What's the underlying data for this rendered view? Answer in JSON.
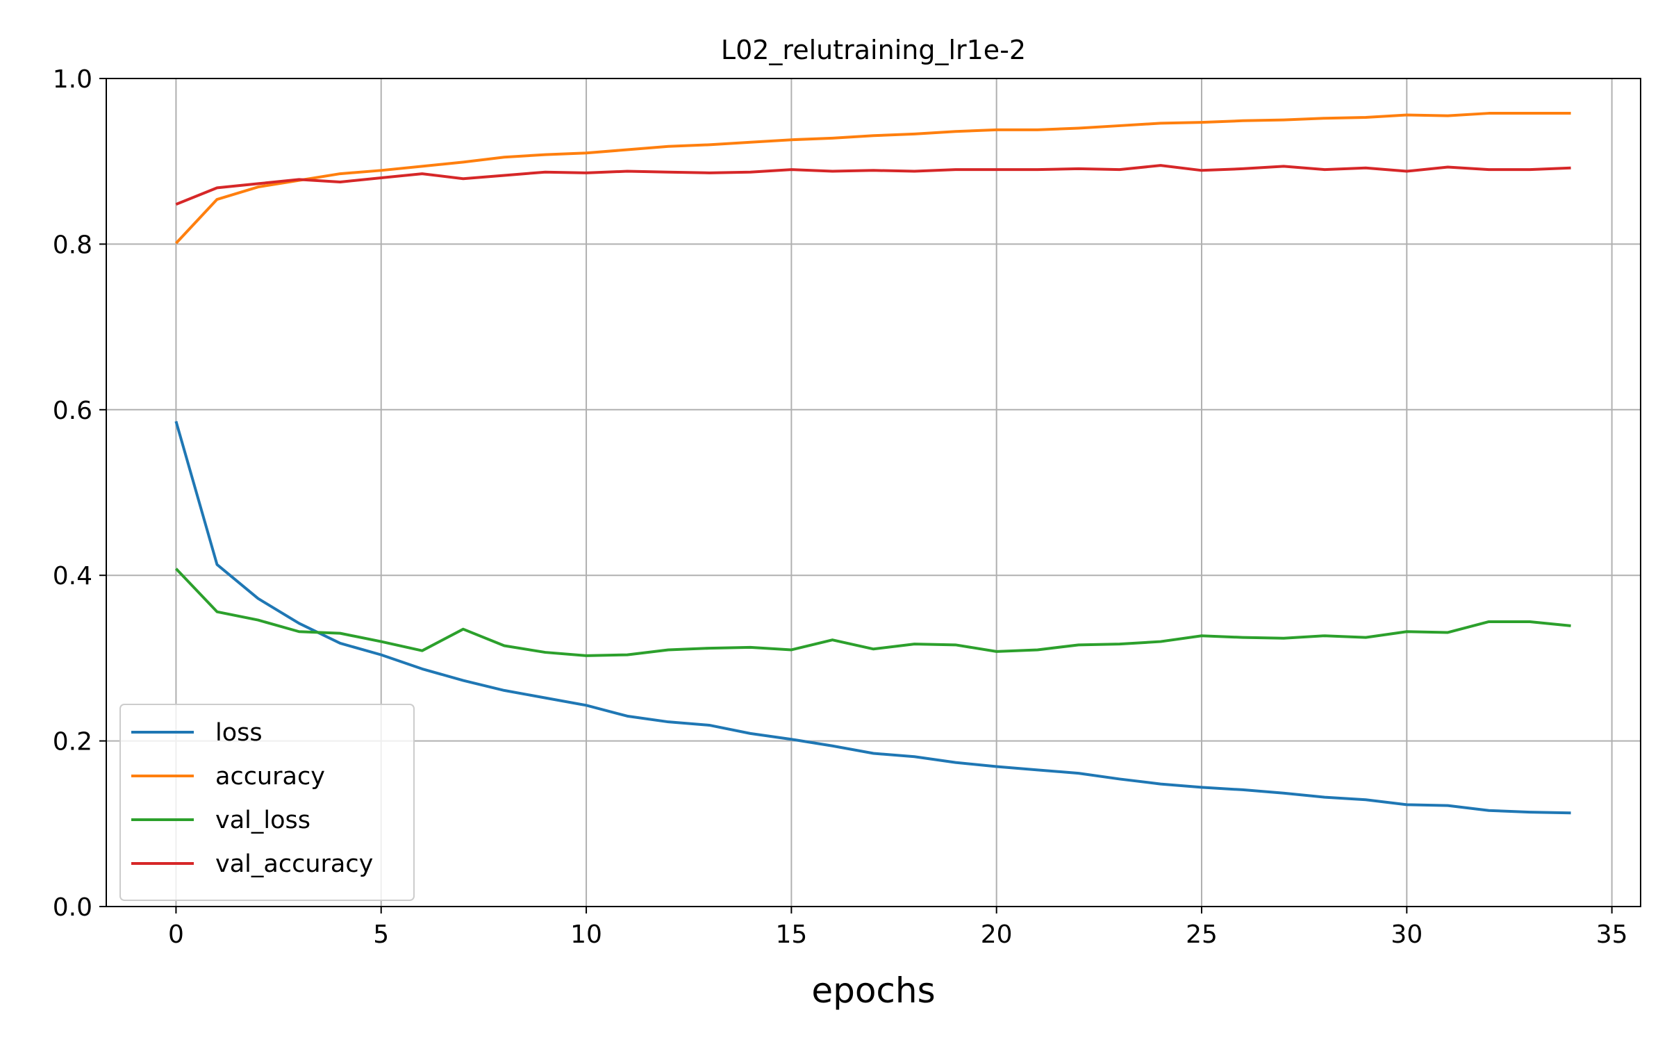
{
  "chart_data": {
    "type": "line",
    "title": "L02_relutraining_lr1e-2",
    "xlabel": "epochs",
    "ylabel": "",
    "xlim": [
      -1.7,
      35.7
    ],
    "ylim": [
      0.0,
      1.0
    ],
    "x_ticks": [
      0,
      5,
      10,
      15,
      20,
      25,
      30,
      35
    ],
    "y_ticks": [
      0.0,
      0.2,
      0.4,
      0.6,
      0.8,
      1.0
    ],
    "x_tick_labels": [
      "0",
      "5",
      "10",
      "15",
      "20",
      "25",
      "30",
      "35"
    ],
    "y_tick_labels": [
      "0.0",
      "0.2",
      "0.4",
      "0.6",
      "0.8",
      "1.0"
    ],
    "grid": true,
    "legend_position": "lower-left",
    "x": [
      0,
      1,
      2,
      3,
      4,
      5,
      6,
      7,
      8,
      9,
      10,
      11,
      12,
      13,
      14,
      15,
      16,
      17,
      18,
      19,
      20,
      21,
      22,
      23,
      24,
      25,
      26,
      27,
      28,
      29,
      30,
      31,
      32,
      33,
      34
    ],
    "series": [
      {
        "name": "loss",
        "color": "#1f77b4",
        "values": [
          0.586,
          0.413,
          0.372,
          0.342,
          0.318,
          0.304,
          0.287,
          0.273,
          0.261,
          0.252,
          0.243,
          0.23,
          0.223,
          0.219,
          0.209,
          0.202,
          0.194,
          0.185,
          0.181,
          0.174,
          0.169,
          0.165,
          0.161,
          0.154,
          0.148,
          0.144,
          0.141,
          0.137,
          0.132,
          0.129,
          0.123,
          0.122,
          0.116,
          0.114,
          0.113
        ]
      },
      {
        "name": "accuracy",
        "color": "#ff7f0e",
        "values": [
          0.801,
          0.854,
          0.869,
          0.877,
          0.885,
          0.889,
          0.894,
          0.899,
          0.905,
          0.908,
          0.91,
          0.914,
          0.918,
          0.92,
          0.923,
          0.926,
          0.928,
          0.931,
          0.933,
          0.936,
          0.938,
          0.938,
          0.94,
          0.943,
          0.946,
          0.947,
          0.949,
          0.95,
          0.952,
          0.953,
          0.956,
          0.955,
          0.958,
          0.958,
          0.958
        ]
      },
      {
        "name": "val_loss",
        "color": "#2ca02c",
        "values": [
          0.408,
          0.356,
          0.346,
          0.332,
          0.33,
          0.32,
          0.309,
          0.335,
          0.315,
          0.307,
          0.303,
          0.304,
          0.31,
          0.312,
          0.313,
          0.31,
          0.322,
          0.311,
          0.317,
          0.316,
          0.308,
          0.31,
          0.316,
          0.317,
          0.32,
          0.327,
          0.325,
          0.324,
          0.327,
          0.325,
          0.332,
          0.331,
          0.344,
          0.344,
          0.339
        ]
      },
      {
        "name": "val_accuracy",
        "color": "#d62728",
        "values": [
          0.848,
          0.868,
          0.873,
          0.878,
          0.875,
          0.88,
          0.885,
          0.879,
          0.883,
          0.887,
          0.886,
          0.888,
          0.887,
          0.886,
          0.887,
          0.89,
          0.888,
          0.889,
          0.888,
          0.89,
          0.89,
          0.89,
          0.891,
          0.89,
          0.895,
          0.889,
          0.891,
          0.894,
          0.89,
          0.892,
          0.888,
          0.893,
          0.89,
          0.89,
          0.892
        ]
      }
    ]
  }
}
